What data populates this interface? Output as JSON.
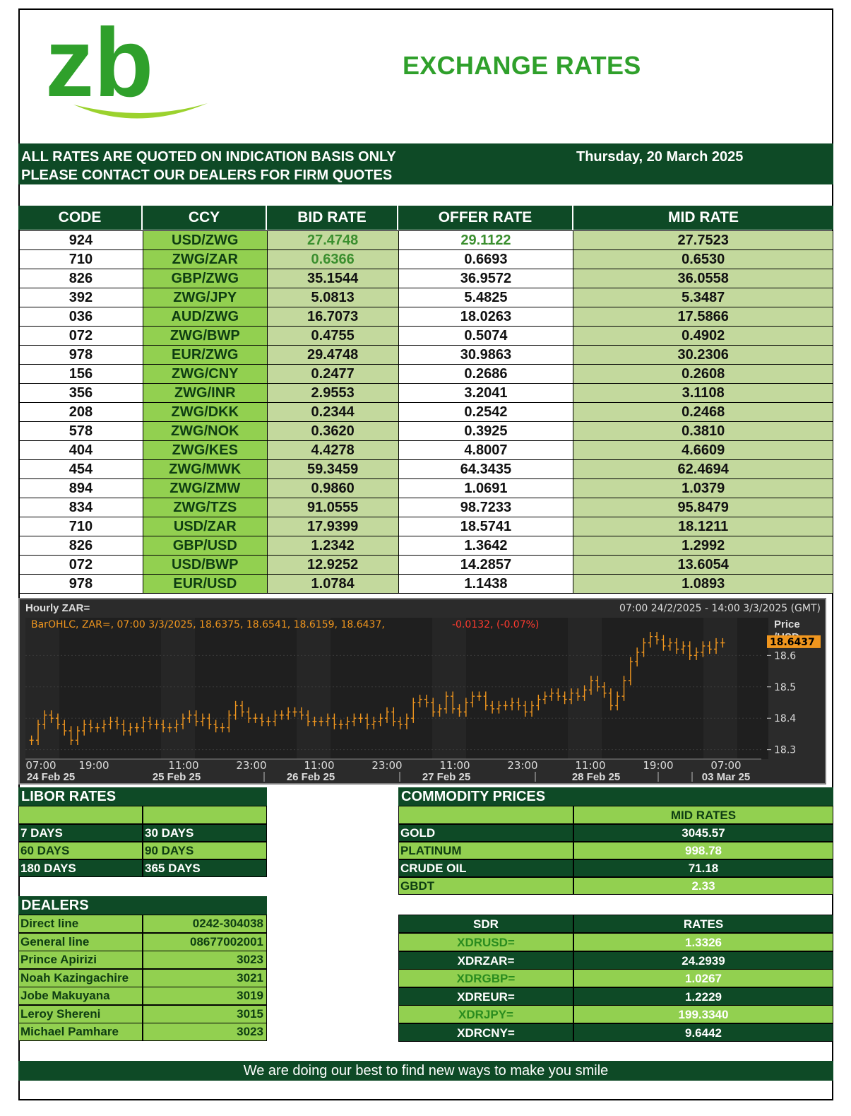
{
  "logo_text": "zb",
  "title": "EXCHANGE RATES",
  "notice": {
    "line1": "ALL RATES ARE QUOTED ON INDICATION BASIS ONLY",
    "line2": "PLEASE CONTACT  OUR DEALERS FOR FIRM QUOTES",
    "date": "Thursday, 20 March 2025"
  },
  "rates_table": {
    "headers": [
      "CODE",
      "CCY",
      "BID RATE",
      "OFFER RATE",
      "MID RATE"
    ],
    "rows": [
      [
        "924",
        "USD/ZWG",
        "27.4748",
        "29.1122",
        "27.7523"
      ],
      [
        "710",
        "ZWG/ZAR",
        "0.6366",
        "0.6693",
        "0.6530"
      ],
      [
        "826",
        "GBP/ZWG",
        "35.1544",
        "36.9572",
        "36.0558"
      ],
      [
        "392",
        "ZWG/JPY",
        "5.0813",
        "5.4825",
        "5.3487"
      ],
      [
        "036",
        "AUD/ZWG",
        "16.7073",
        "18.0263",
        "17.5866"
      ],
      [
        "072",
        "ZWG/BWP",
        "0.4755",
        "0.5074",
        "0.4902"
      ],
      [
        "978",
        "EUR/ZWG",
        "29.4748",
        "30.9863",
        "30.2306"
      ],
      [
        "156",
        "ZWG/CNY",
        "0.2477",
        "0.2686",
        "0.2608"
      ],
      [
        "356",
        "ZWG/INR",
        "2.9553",
        "3.2041",
        "3.1108"
      ],
      [
        "208",
        "ZWG/DKK",
        "0.2344",
        "0.2542",
        "0.2468"
      ],
      [
        "578",
        "ZWG/NOK",
        "0.3620",
        "0.3925",
        "0.3810"
      ],
      [
        "404",
        "ZWG/KES",
        "4.4278",
        "4.8007",
        "4.6609"
      ],
      [
        "454",
        "ZWG/MWK",
        "59.3459",
        "64.3435",
        "62.4694"
      ],
      [
        "894",
        "ZWG/ZMW",
        "0.9860",
        "1.0691",
        "1.0379"
      ],
      [
        "834",
        "ZWG/TZS",
        "91.0555",
        "98.7233",
        "95.8479"
      ],
      [
        "710",
        "USD/ZAR",
        "17.9399",
        "18.5741",
        "18.1211"
      ],
      [
        "826",
        "GBP/USD",
        "1.2342",
        "1.3642",
        "1.2992"
      ],
      [
        "072",
        "USD/BWP",
        "12.9252",
        "14.2857",
        "13.6054"
      ],
      [
        "978",
        "EUR/USD",
        "1.0784",
        "1.1438",
        "1.0893"
      ]
    ]
  },
  "chart_data": {
    "type": "bar",
    "subtype": "ohlc",
    "title": "Hourly ZAR=",
    "range_label": "07:00 24/2/2025 - 14:00 3/3/2025 (GMT)",
    "legend": "BarOHLC, ZAR=, 07:00 3/3/2025, 18.6375, 18.6541, 18.6159, 18.6437,",
    "legend_change": "-0.0132, (-0.07%)",
    "ylabel": "Price\n/USD",
    "last_price": "18.6437",
    "y_ticks": [
      "18.6",
      "18.5",
      "18.4",
      "18.3"
    ],
    "ylim": [
      18.27,
      18.72
    ],
    "x_time_ticks": [
      "07:00",
      "19:00",
      "11:00",
      "23:00",
      "11:00",
      "23:00",
      "11:00",
      "23:00",
      "11:00",
      "19:00",
      "07:00"
    ],
    "x_date_ticks": [
      "24 Feb 25",
      "25 Feb 25",
      "26 Feb 25",
      "27 Feb 25",
      "28 Feb 25",
      "03 Mar 25"
    ],
    "colors": {
      "bar": "#f0961e",
      "background": "#2b2b2b",
      "change": "#ff3b2f"
    },
    "close_series": [
      18.33,
      18.38,
      18.41,
      18.4,
      18.38,
      18.36,
      18.33,
      18.36,
      18.38,
      18.37,
      18.37,
      18.38,
      18.39,
      18.38,
      18.36,
      18.37,
      18.37,
      18.39,
      18.38,
      18.38,
      18.37,
      18.37,
      18.38,
      18.4,
      18.41,
      18.39,
      18.4,
      18.38,
      18.37,
      18.37,
      18.41,
      18.44,
      18.42,
      18.4,
      18.4,
      18.39,
      18.39,
      18.41,
      18.41,
      18.42,
      18.42,
      18.41,
      18.39,
      18.39,
      18.39,
      18.4,
      18.38,
      18.38,
      18.39,
      18.4,
      18.4,
      18.38,
      18.39,
      18.4,
      18.42,
      18.39,
      18.38,
      18.4,
      18.45,
      18.46,
      18.45,
      18.42,
      18.43,
      18.47,
      18.43,
      18.42,
      18.45,
      18.47,
      18.47,
      18.44,
      18.43,
      18.44,
      18.44,
      18.45,
      18.44,
      18.42,
      18.44,
      18.46,
      18.47,
      18.48,
      18.47,
      18.46,
      18.48,
      18.47,
      18.49,
      18.52,
      18.5,
      18.48,
      18.44,
      18.47,
      18.52,
      18.58,
      18.61,
      18.64,
      18.66,
      18.65,
      18.63,
      18.64,
      18.62,
      18.63,
      18.6,
      18.61,
      18.63,
      18.62,
      18.64,
      18.64
    ]
  },
  "libor": {
    "title": "LIBOR RATES",
    "rows": [
      [
        "7 DAYS",
        "30 DAYS"
      ],
      [
        "60 DAYS",
        "90 DAYS"
      ],
      [
        "180 DAYS",
        "365 DAYS"
      ]
    ]
  },
  "commodity": {
    "title": "COMMODITY PRICES",
    "subheader": "MID RATES",
    "rows": [
      [
        "GOLD",
        "3045.57"
      ],
      [
        "PLATINUM",
        "998.78"
      ],
      [
        "CRUDE OIL",
        "71.18"
      ],
      [
        "GBDT",
        "2.33"
      ]
    ]
  },
  "dealers": {
    "title": "DEALERS",
    "rows": [
      [
        "Direct line",
        "0242-304038"
      ],
      [
        "General line",
        "08677002001"
      ],
      [
        "Prince Apirizi",
        "3023"
      ],
      [
        "Noah Kazingachire",
        "3021"
      ],
      [
        "Jobe Makuyana",
        "3019"
      ],
      [
        "Leroy Shereni",
        "3015"
      ],
      [
        "Michael Pamhare",
        "3023"
      ]
    ]
  },
  "sdr": {
    "headers": [
      "SDR",
      "RATES"
    ],
    "rows": [
      [
        "XDRUSD=",
        "1.3326"
      ],
      [
        "XDRZAR=",
        "24.2939"
      ],
      [
        "XDRGBP=",
        "1.0267"
      ],
      [
        "XDREUR=",
        "1.2229"
      ],
      [
        "XDRJPY=",
        "199.3340"
      ],
      [
        "XDRCNY=",
        "9.6442"
      ]
    ]
  },
  "footer": "We are doing our best to find new ways to make you smile"
}
